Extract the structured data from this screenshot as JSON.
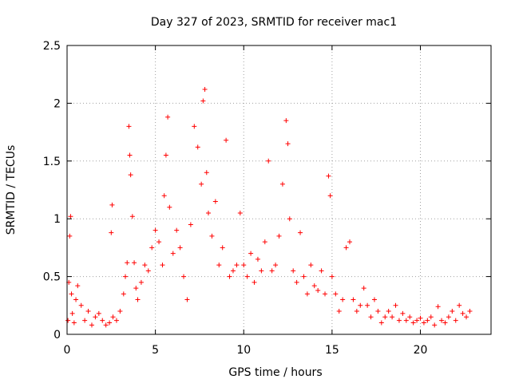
{
  "chart_data": {
    "type": "scatter",
    "title": "Day 327 of 2023, SRMTID for receiver mac1",
    "xlabel": "GPS time / hours",
    "ylabel": "SRMTID / TECUs",
    "xlim": [
      0,
      24
    ],
    "ylim": [
      0,
      2.5
    ],
    "xticks": [
      0,
      5,
      10,
      15,
      20
    ],
    "xtick_labels": [
      "0",
      "5",
      "10",
      "15",
      "20"
    ],
    "yticks": [
      0,
      0.5,
      1,
      1.5,
      2,
      2.5
    ],
    "ytick_labels": [
      "0",
      "0.5",
      "1",
      "1.5",
      "2",
      "2.5"
    ],
    "grid": true,
    "marker": "+",
    "series": [
      {
        "name": "SRMTID",
        "color": "#ff0000",
        "points": [
          [
            0.05,
            0.12
          ],
          [
            0.1,
            0.45
          ],
          [
            0.15,
            0.85
          ],
          [
            0.2,
            1.02
          ],
          [
            0.25,
            0.35
          ],
          [
            0.3,
            0.18
          ],
          [
            0.4,
            0.1
          ],
          [
            0.5,
            0.3
          ],
          [
            0.6,
            0.42
          ],
          [
            0.8,
            0.25
          ],
          [
            1.0,
            0.12
          ],
          [
            1.2,
            0.2
          ],
          [
            1.4,
            0.08
          ],
          [
            1.6,
            0.15
          ],
          [
            1.8,
            0.18
          ],
          [
            2.0,
            0.12
          ],
          [
            2.2,
            0.08
          ],
          [
            2.4,
            0.1
          ],
          [
            2.5,
            0.88
          ],
          [
            2.55,
            1.12
          ],
          [
            2.6,
            0.15
          ],
          [
            2.8,
            0.12
          ],
          [
            3.0,
            0.2
          ],
          [
            3.2,
            0.35
          ],
          [
            3.3,
            0.5
          ],
          [
            3.4,
            0.62
          ],
          [
            3.5,
            1.8
          ],
          [
            3.55,
            1.55
          ],
          [
            3.6,
            1.38
          ],
          [
            3.7,
            1.02
          ],
          [
            3.8,
            0.62
          ],
          [
            3.9,
            0.4
          ],
          [
            4.0,
            0.3
          ],
          [
            4.2,
            0.45
          ],
          [
            4.4,
            0.6
          ],
          [
            4.6,
            0.55
          ],
          [
            4.8,
            0.75
          ],
          [
            5.0,
            0.9
          ],
          [
            5.2,
            0.8
          ],
          [
            5.4,
            0.6
          ],
          [
            5.5,
            1.2
          ],
          [
            5.6,
            1.55
          ],
          [
            5.7,
            1.88
          ],
          [
            5.8,
            1.1
          ],
          [
            6.0,
            0.7
          ],
          [
            6.2,
            0.9
          ],
          [
            6.4,
            0.75
          ],
          [
            6.6,
            0.5
          ],
          [
            6.8,
            0.3
          ],
          [
            7.0,
            0.95
          ],
          [
            7.2,
            1.8
          ],
          [
            7.4,
            1.62
          ],
          [
            7.6,
            1.3
          ],
          [
            7.7,
            2.02
          ],
          [
            7.8,
            2.12
          ],
          [
            7.9,
            1.4
          ],
          [
            8.0,
            1.05
          ],
          [
            8.2,
            0.85
          ],
          [
            8.4,
            1.15
          ],
          [
            8.6,
            0.6
          ],
          [
            8.8,
            0.75
          ],
          [
            9.0,
            1.68
          ],
          [
            9.2,
            0.5
          ],
          [
            9.4,
            0.55
          ],
          [
            9.6,
            0.6
          ],
          [
            9.8,
            1.05
          ],
          [
            10.0,
            0.6
          ],
          [
            10.2,
            0.5
          ],
          [
            10.4,
            0.7
          ],
          [
            10.6,
            0.45
          ],
          [
            10.8,
            0.65
          ],
          [
            11.0,
            0.55
          ],
          [
            11.2,
            0.8
          ],
          [
            11.4,
            1.5
          ],
          [
            11.6,
            0.55
          ],
          [
            11.8,
            0.6
          ],
          [
            12.0,
            0.85
          ],
          [
            12.2,
            1.3
          ],
          [
            12.4,
            1.85
          ],
          [
            12.5,
            1.65
          ],
          [
            12.6,
            1.0
          ],
          [
            12.8,
            0.55
          ],
          [
            13.0,
            0.45
          ],
          [
            13.2,
            0.88
          ],
          [
            13.4,
            0.5
          ],
          [
            13.6,
            0.35
          ],
          [
            13.8,
            0.6
          ],
          [
            14.0,
            0.42
          ],
          [
            14.2,
            0.38
          ],
          [
            14.4,
            0.55
          ],
          [
            14.6,
            0.35
          ],
          [
            14.8,
            1.37
          ],
          [
            14.9,
            1.2
          ],
          [
            15.0,
            0.5
          ],
          [
            15.2,
            0.35
          ],
          [
            15.4,
            0.2
          ],
          [
            15.6,
            0.3
          ],
          [
            15.8,
            0.75
          ],
          [
            16.0,
            0.8
          ],
          [
            16.2,
            0.3
          ],
          [
            16.4,
            0.2
          ],
          [
            16.6,
            0.25
          ],
          [
            16.8,
            0.4
          ],
          [
            17.0,
            0.25
          ],
          [
            17.2,
            0.15
          ],
          [
            17.4,
            0.3
          ],
          [
            17.6,
            0.2
          ],
          [
            17.8,
            0.1
          ],
          [
            18.0,
            0.15
          ],
          [
            18.2,
            0.2
          ],
          [
            18.4,
            0.15
          ],
          [
            18.6,
            0.25
          ],
          [
            18.8,
            0.12
          ],
          [
            19.0,
            0.18
          ],
          [
            19.2,
            0.12
          ],
          [
            19.4,
            0.15
          ],
          [
            19.6,
            0.1
          ],
          [
            19.8,
            0.12
          ],
          [
            20.0,
            0.14
          ],
          [
            20.2,
            0.1
          ],
          [
            20.4,
            0.12
          ],
          [
            20.6,
            0.15
          ],
          [
            20.8,
            0.08
          ],
          [
            21.0,
            0.24
          ],
          [
            21.2,
            0.12
          ],
          [
            21.4,
            0.1
          ],
          [
            21.6,
            0.15
          ],
          [
            21.8,
            0.2
          ],
          [
            22.0,
            0.12
          ],
          [
            22.2,
            0.25
          ],
          [
            22.4,
            0.18
          ],
          [
            22.6,
            0.15
          ],
          [
            22.8,
            0.2
          ]
        ]
      }
    ]
  }
}
